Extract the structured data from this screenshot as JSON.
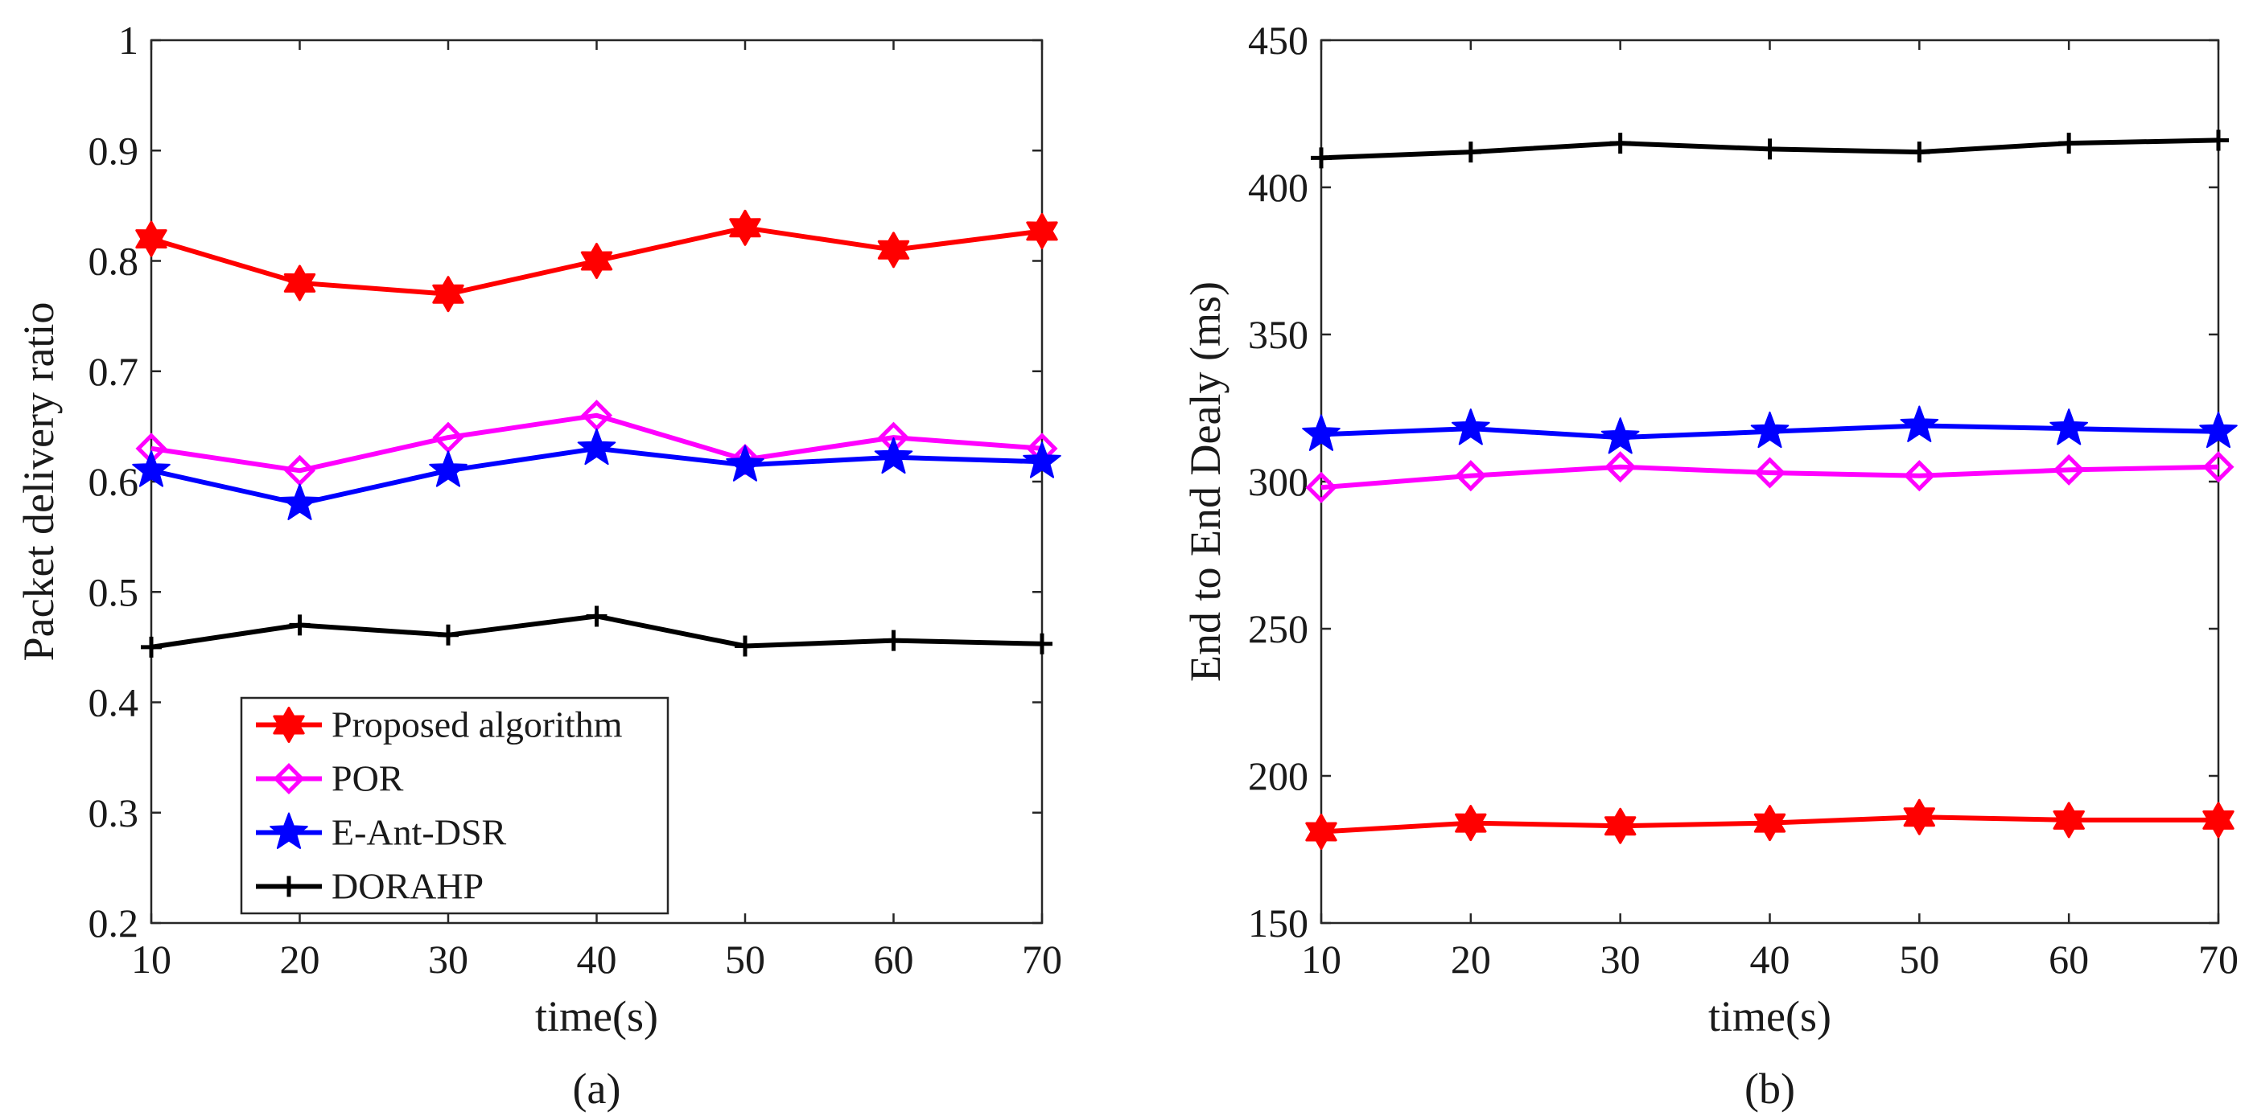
{
  "chart_data": [
    {
      "type": "line",
      "panel_label": "(a)",
      "title": "",
      "xlabel": "time(s)",
      "ylabel": "Packet delivery ratio",
      "xlim": [
        10,
        70
      ],
      "ylim": [
        0.2,
        1
      ],
      "x": [
        10,
        20,
        30,
        40,
        50,
        60,
        70
      ],
      "xticks": [
        "10",
        "20",
        "30",
        "40",
        "50",
        "60",
        "70"
      ],
      "yticks": [
        "0.2",
        "0.3",
        "0.4",
        "0.5",
        "0.6",
        "0.7",
        "0.8",
        "0.9",
        "1"
      ],
      "grid": false,
      "legend_position": "bottom-left",
      "series": [
        {
          "name": "Proposed algorithm",
          "color": "#ff0000",
          "marker": "hexagram",
          "values": [
            0.82,
            0.78,
            0.77,
            0.8,
            0.83,
            0.81,
            0.827
          ]
        },
        {
          "name": "POR",
          "color": "#ff00ff",
          "marker": "diamond",
          "values": [
            0.63,
            0.61,
            0.64,
            0.66,
            0.62,
            0.64,
            0.63
          ]
        },
        {
          "name": "E-Ant-DSR",
          "color": "#0000ff",
          "marker": "pentagram",
          "values": [
            0.61,
            0.58,
            0.61,
            0.63,
            0.615,
            0.622,
            0.618
          ]
        },
        {
          "name": "DORAHP",
          "color": "#000000",
          "marker": "plus",
          "values": [
            0.45,
            0.47,
            0.461,
            0.478,
            0.451,
            0.456,
            0.453
          ]
        }
      ]
    },
    {
      "type": "line",
      "panel_label": "(b)",
      "title": "",
      "xlabel": "time(s)",
      "ylabel": "End to End Dealy (ms)",
      "xlim": [
        10,
        70
      ],
      "ylim": [
        150,
        450
      ],
      "x": [
        10,
        20,
        30,
        40,
        50,
        60,
        70
      ],
      "xticks": [
        "10",
        "20",
        "30",
        "40",
        "50",
        "60",
        "70"
      ],
      "yticks": [
        "150",
        "200",
        "250",
        "300",
        "350",
        "400",
        "450"
      ],
      "grid": false,
      "legend_position": "none",
      "series": [
        {
          "name": "Proposed algorithm",
          "color": "#ff0000",
          "marker": "hexagram",
          "values": [
            181,
            184,
            183,
            184,
            186,
            185,
            185
          ]
        },
        {
          "name": "POR",
          "color": "#ff00ff",
          "marker": "diamond",
          "values": [
            298,
            302,
            305,
            303,
            302,
            304,
            305
          ]
        },
        {
          "name": "E-Ant-DSR",
          "color": "#0000ff",
          "marker": "pentagram",
          "values": [
            316,
            318,
            315,
            317,
            319,
            318,
            317
          ]
        },
        {
          "name": "DORAHP",
          "color": "#000000",
          "marker": "plus",
          "values": [
            410,
            412,
            415,
            413,
            412,
            415,
            416
          ]
        }
      ]
    }
  ]
}
